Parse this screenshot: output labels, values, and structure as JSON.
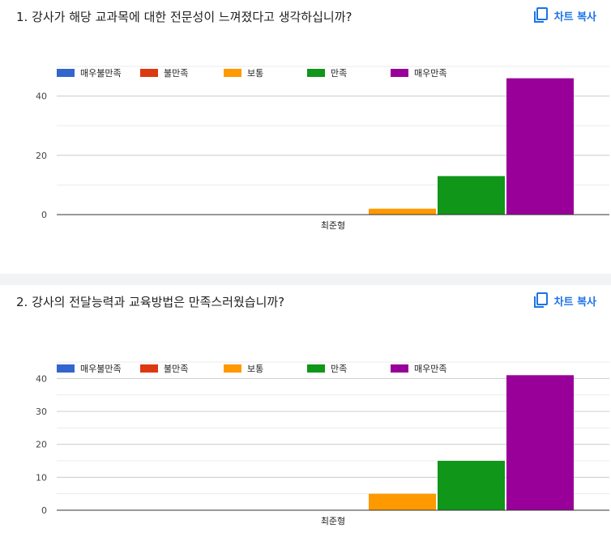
{
  "colors": {
    "매우불만족": "#3366cc",
    "불만족": "#dc3912",
    "보통": "#ff9900",
    "만족": "#109618",
    "매우만족": "#990099",
    "accent": "#1a73e8"
  },
  "copy_button": {
    "label": "차트 복사",
    "icon": "copy-icon"
  },
  "questions": [
    {
      "title": "1. 강사가 해당 교과목에 대한 전문성이 느껴졌다고 생각하십니까?"
    },
    {
      "title": "2. 강사의 전달능력과 교육방법은 만족스러웠습니까?"
    }
  ],
  "chart_data": [
    {
      "type": "bar",
      "title": "1. 강사가 해당 교과목에 대한 전문성이 느껴졌다고 생각하십니까?",
      "categories": [
        "최준형"
      ],
      "series": [
        {
          "name": "매우불만족",
          "values": [
            0
          ]
        },
        {
          "name": "불만족",
          "values": [
            0
          ]
        },
        {
          "name": "보통",
          "values": [
            2
          ]
        },
        {
          "name": "만족",
          "values": [
            13
          ]
        },
        {
          "name": "매우만족",
          "values": [
            46
          ]
        }
      ],
      "ylim": [
        0,
        50
      ],
      "yticks": [
        0,
        20,
        40
      ],
      "minor_ticks": [
        10,
        30,
        50
      ],
      "legend": "top-left",
      "grid": true
    },
    {
      "type": "bar",
      "title": "2. 강사의 전달능력과 교육방법은 만족스러웠습니까?",
      "categories": [
        "최준형"
      ],
      "series": [
        {
          "name": "매우불만족",
          "values": [
            0
          ]
        },
        {
          "name": "불만족",
          "values": [
            0
          ]
        },
        {
          "name": "보통",
          "values": [
            5
          ]
        },
        {
          "name": "만족",
          "values": [
            15
          ]
        },
        {
          "name": "매우만족",
          "values": [
            41
          ]
        }
      ],
      "ylim": [
        0,
        45
      ],
      "yticks": [
        0,
        10,
        20,
        30,
        40
      ],
      "minor_ticks": [
        5,
        15,
        25,
        35,
        45
      ],
      "legend": "top-left",
      "grid": true
    }
  ]
}
